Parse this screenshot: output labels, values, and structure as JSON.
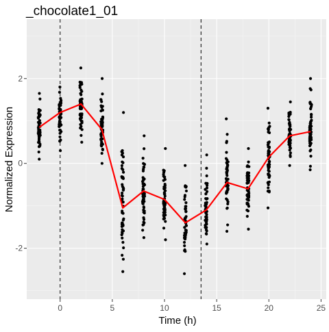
{
  "colors": {
    "panel_background": "#ebebeb",
    "grid_major": "#ffffff",
    "grid_minor": "#f5f5f5",
    "points": "#000000",
    "mean_line": "#ff0000",
    "vline": "#000000"
  },
  "chart_data": {
    "type": "scatter",
    "title": "_chocolate1_01",
    "xlabel": "Time (h)",
    "ylabel": "Normalized Expression",
    "xlim": [
      -3.2,
      25.5
    ],
    "ylim": [
      -3.2,
      3.4
    ],
    "x_ticks": [
      0,
      5,
      10,
      15,
      20,
      25
    ],
    "y_ticks": [
      -2,
      0,
      2
    ],
    "x_tick_labels": [
      "0",
      "5",
      "10",
      "15",
      "20",
      "25"
    ],
    "y_tick_labels": [
      "-2",
      "0",
      "2"
    ],
    "grid": true,
    "legend": "none",
    "vlines": [
      {
        "x": 0,
        "style": "dashed"
      },
      {
        "x": 13.5,
        "style": "dashed"
      }
    ],
    "point_groups": [
      {
        "x": -2,
        "min": 0.1,
        "max": 1.65,
        "center": 0.85
      },
      {
        "x": 0,
        "min": 0.3,
        "max": 1.8,
        "center": 1.2
      },
      {
        "x": 2,
        "min": 0.5,
        "max": 2.25,
        "center": 1.4
      },
      {
        "x": 4,
        "min": 0.0,
        "max": 2.0,
        "center": 0.8
      },
      {
        "x": 6,
        "min": -2.55,
        "max": 1.2,
        "center": -1.05
      },
      {
        "x": 8,
        "min": -1.75,
        "max": 0.65,
        "center": -0.65
      },
      {
        "x": 10,
        "min": -1.8,
        "max": 0.35,
        "center": -0.85
      },
      {
        "x": 12,
        "min": -2.6,
        "max": -0.05,
        "center": -1.4
      },
      {
        "x": 14,
        "min": -1.9,
        "max": 0.2,
        "center": -1.1
      },
      {
        "x": 16,
        "min": -1.6,
        "max": 1.05,
        "center": -0.45
      },
      {
        "x": 18,
        "min": -1.55,
        "max": 0.35,
        "center": -0.6
      },
      {
        "x": 20,
        "min": -1.05,
        "max": 1.3,
        "center": 0.15
      },
      {
        "x": 22,
        "min": -0.05,
        "max": 1.45,
        "center": 0.65
      },
      {
        "x": 24,
        "min": -0.15,
        "max": 2.0,
        "center": 0.75
      }
    ],
    "series": [
      {
        "x": [
          -2,
          0,
          2,
          4,
          6,
          8,
          10,
          12,
          14,
          16,
          18,
          20,
          22,
          24
        ],
        "y": [
          0.85,
          1.2,
          1.4,
          0.8,
          -1.05,
          -0.65,
          -0.85,
          -1.4,
          -1.1,
          -0.45,
          -0.6,
          0.15,
          0.65,
          0.75
        ]
      }
    ]
  }
}
